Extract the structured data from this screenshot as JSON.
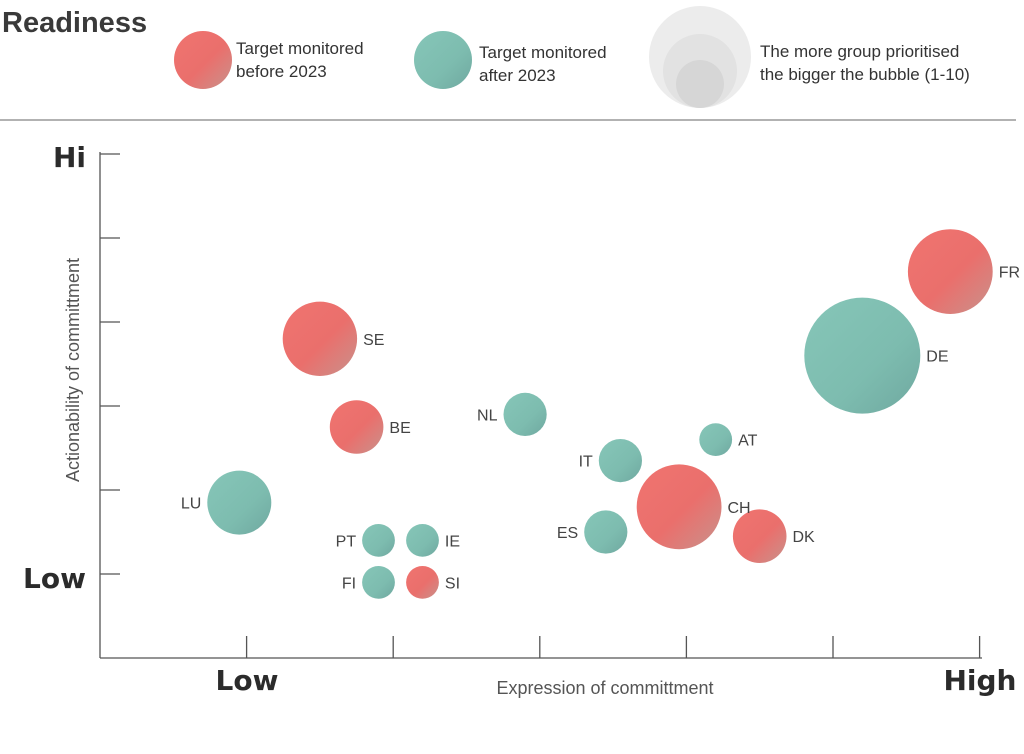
{
  "title": "Readiness",
  "legend": {
    "before": {
      "line1": "Target monitored",
      "line2": "before 2023"
    },
    "after": {
      "line1": "Target monitored",
      "line2": "after 2023"
    },
    "size": {
      "line1": "The more group prioritised",
      "line2": "the bigger the bubble (1-10)"
    }
  },
  "colors": {
    "before": "#ea6f6c",
    "after": "#7fbfb2",
    "size_legend": "#d9d9d9",
    "axis": "#555555"
  },
  "chart_data": {
    "type": "bubble",
    "xlabel": "Expression of committment",
    "ylabel": "Actionability of committment",
    "x_ends": {
      "low": "Low",
      "high": "High"
    },
    "y_ends": {
      "low": "Low",
      "high": "Hi"
    },
    "xlim": [
      0,
      6
    ],
    "ylim": [
      0,
      6
    ],
    "x_ticks": [
      1,
      2,
      3,
      4,
      5,
      6
    ],
    "y_ticks": [
      1,
      2,
      3,
      4,
      5,
      6
    ],
    "size_range": [
      1,
      10
    ],
    "points": [
      {
        "label": "FR",
        "x": 5.8,
        "y": 4.6,
        "size": 7,
        "group": "before"
      },
      {
        "label": "DE",
        "x": 5.2,
        "y": 3.6,
        "size": 10,
        "group": "after"
      },
      {
        "label": "SE",
        "x": 1.5,
        "y": 3.8,
        "size": 6,
        "group": "before"
      },
      {
        "label": "BE",
        "x": 1.75,
        "y": 2.75,
        "size": 4,
        "group": "before"
      },
      {
        "label": "NL",
        "x": 2.9,
        "y": 2.9,
        "size": 3,
        "group": "after"
      },
      {
        "label": "AT",
        "x": 4.2,
        "y": 2.6,
        "size": 2,
        "group": "after"
      },
      {
        "label": "IT",
        "x": 3.55,
        "y": 2.35,
        "size": 3,
        "group": "after"
      },
      {
        "label": "CH",
        "x": 3.95,
        "y": 1.8,
        "size": 7,
        "group": "before"
      },
      {
        "label": "LU",
        "x": 0.95,
        "y": 1.85,
        "size": 5,
        "group": "after"
      },
      {
        "label": "ES",
        "x": 3.45,
        "y": 1.5,
        "size": 3,
        "group": "after"
      },
      {
        "label": "DK",
        "x": 4.5,
        "y": 1.45,
        "size": 4,
        "group": "before"
      },
      {
        "label": "PT",
        "x": 1.9,
        "y": 1.4,
        "size": 2,
        "group": "after"
      },
      {
        "label": "IE",
        "x": 2.2,
        "y": 1.4,
        "size": 2,
        "group": "after"
      },
      {
        "label": "FI",
        "x": 1.9,
        "y": 0.9,
        "size": 2,
        "group": "after"
      },
      {
        "label": "SI",
        "x": 2.2,
        "y": 0.9,
        "size": 2,
        "group": "before"
      }
    ]
  }
}
